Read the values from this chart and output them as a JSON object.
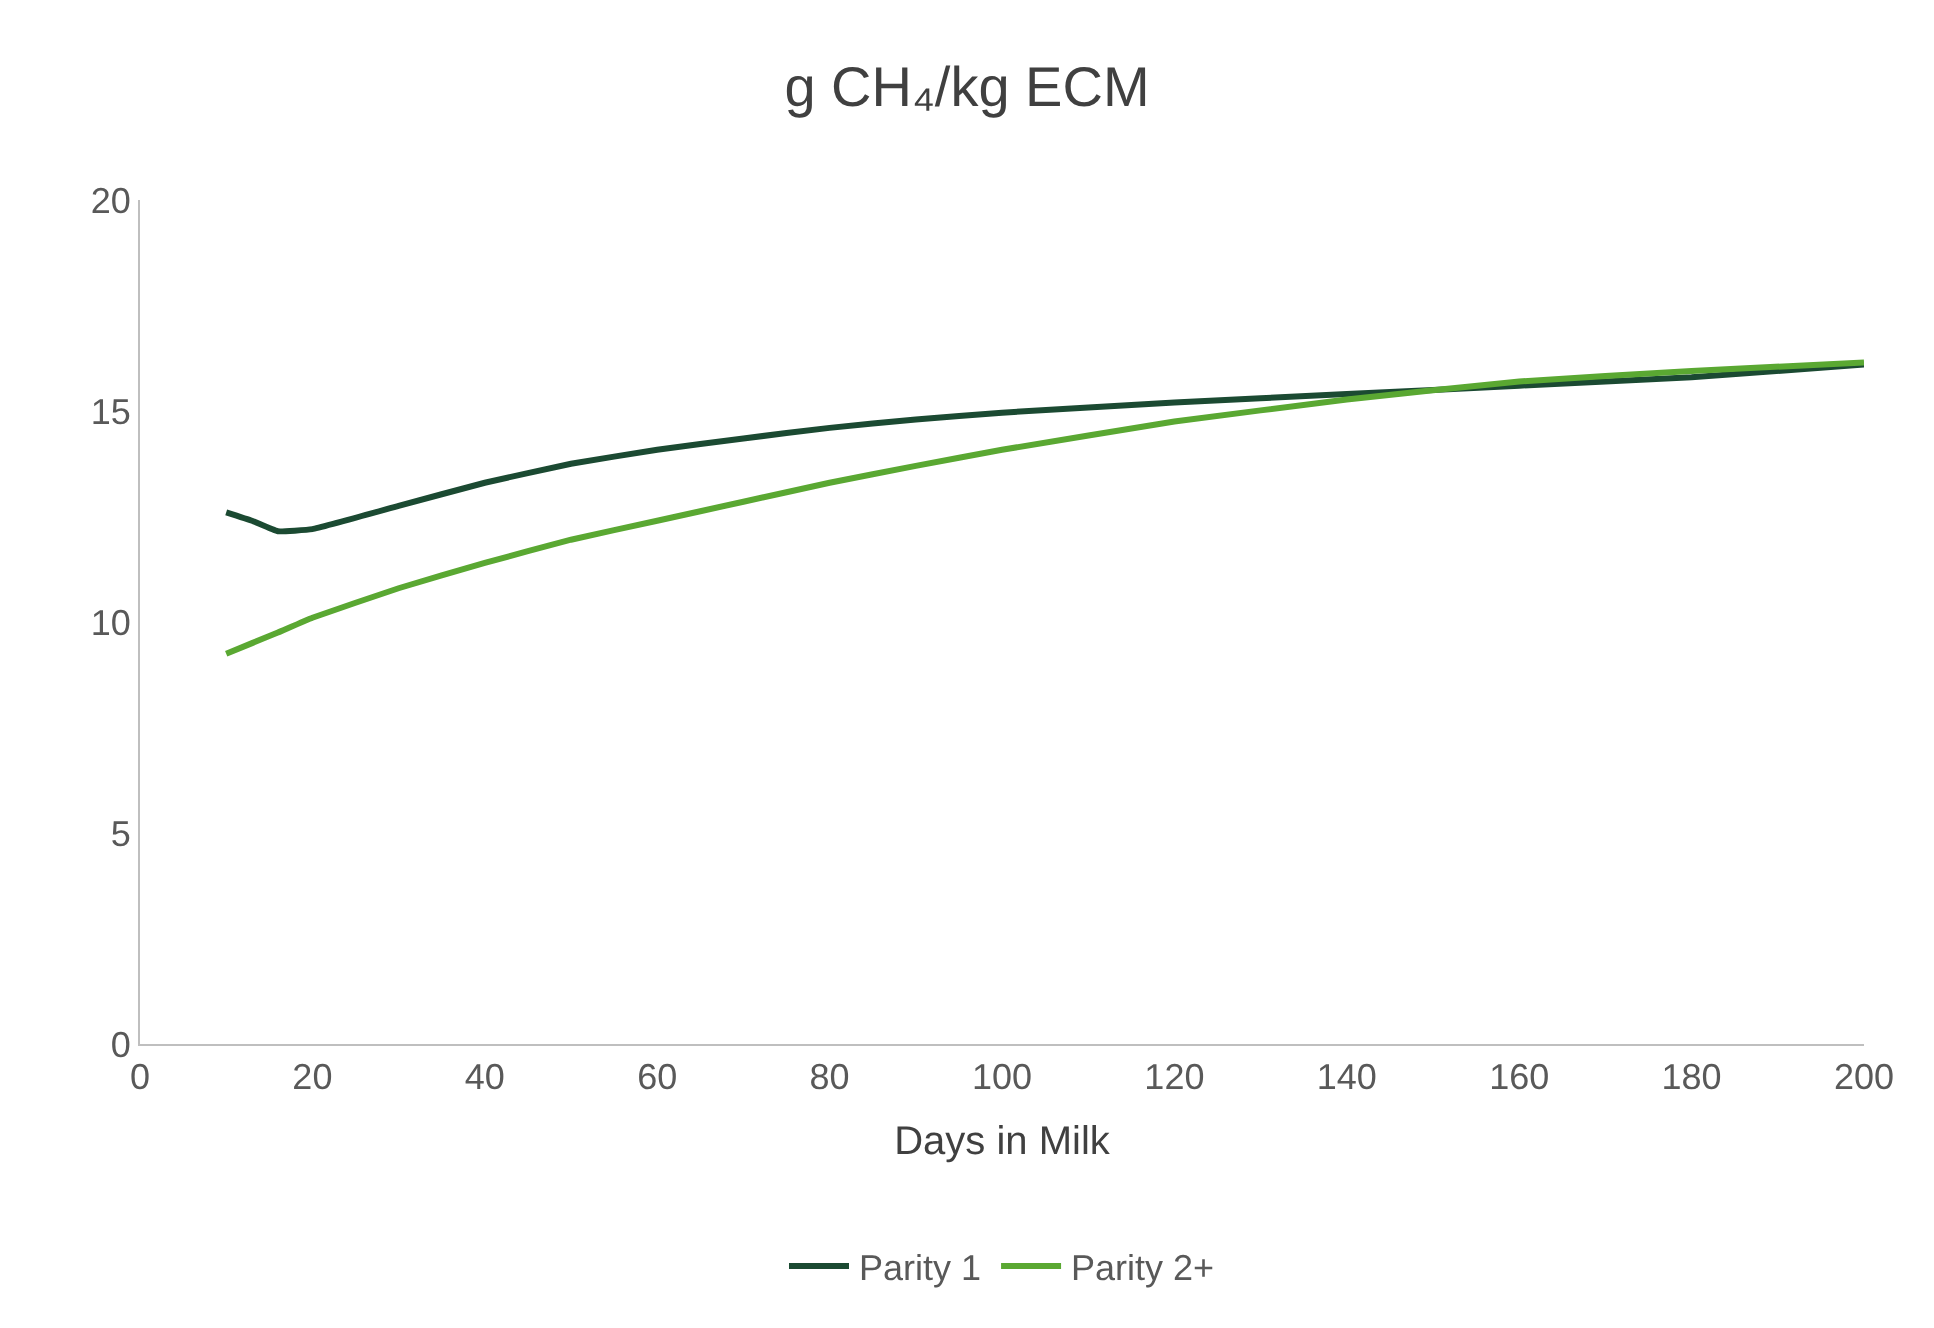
{
  "chart_data": {
    "type": "line",
    "title": "g CH₄/kg ECM",
    "xlabel": "Days in Milk",
    "x": [
      10,
      13,
      16,
      20,
      30,
      40,
      50,
      60,
      70,
      80,
      90,
      100,
      120,
      140,
      160,
      180,
      200
    ],
    "series": [
      {
        "name": "Parity 1",
        "color": "#1b4a32",
        "values": [
          12.6,
          12.4,
          12.15,
          12.2,
          12.75,
          13.3,
          13.75,
          14.08,
          14.35,
          14.6,
          14.8,
          14.96,
          15.2,
          15.4,
          15.6,
          15.8,
          16.1
        ]
      },
      {
        "name": "Parity 2+",
        "color": "#5aa832",
        "values": [
          9.25,
          9.5,
          9.75,
          10.1,
          10.8,
          11.4,
          11.95,
          12.4,
          12.85,
          13.3,
          13.7,
          14.08,
          14.75,
          15.27,
          15.7,
          15.95,
          16.15
        ]
      }
    ],
    "xlim": [
      0,
      200
    ],
    "xticks": [
      0,
      20,
      40,
      60,
      80,
      100,
      120,
      140,
      160,
      180,
      200
    ],
    "ylim": [
      0,
      20
    ],
    "yticks": [
      0,
      5,
      10,
      15,
      20
    ],
    "grid": false,
    "legend": "bottom",
    "marker": "none",
    "line_style": "solid"
  }
}
